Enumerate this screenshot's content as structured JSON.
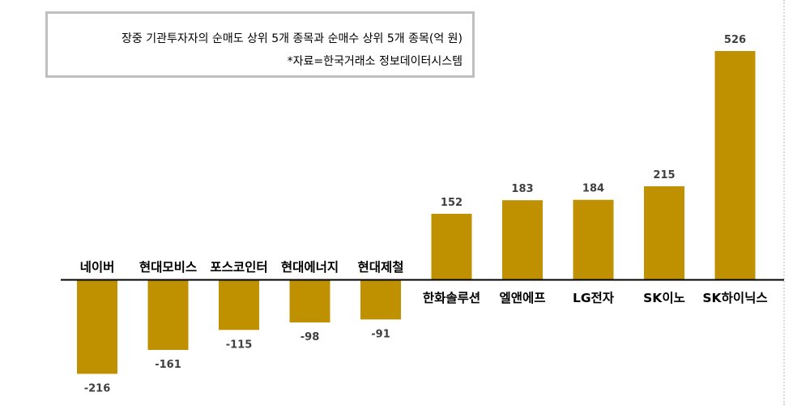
{
  "note": {
    "line1": "장중 기관투자자의 순매도 상위 5개 종목과 순매수 상위 5개 종목(억 원)",
    "line2": "*자료=한국거래소 정보데이터시스템"
  },
  "colors": {
    "bar": "#BF9000",
    "axis": "#000000",
    "box_border": "#BFBFBF"
  },
  "chart_data": {
    "type": "bar",
    "title": "장중 기관투자자의 순매도 상위 5개 종목과 순매수 상위 5개 종목(억 원)",
    "unit": "억 원",
    "source": "*자료=한국거래소 정보데이터시스템",
    "categories": [
      "네이버",
      "현대모비스",
      "포스코인터",
      "현대에너지",
      "현대제철",
      "한화솔루션",
      "엘앤에프",
      "LG전자",
      "SK이노",
      "SK하이닉스"
    ],
    "values": [
      -216,
      -161,
      -115,
      -98,
      -91,
      152,
      183,
      184,
      215,
      526
    ],
    "value_labels": [
      "-216",
      "-161",
      "-115",
      "-98",
      "-91",
      "152",
      "183",
      "184",
      "215",
      "526"
    ],
    "ylim": [
      -230,
      540
    ],
    "grid": false,
    "legend": "none"
  }
}
